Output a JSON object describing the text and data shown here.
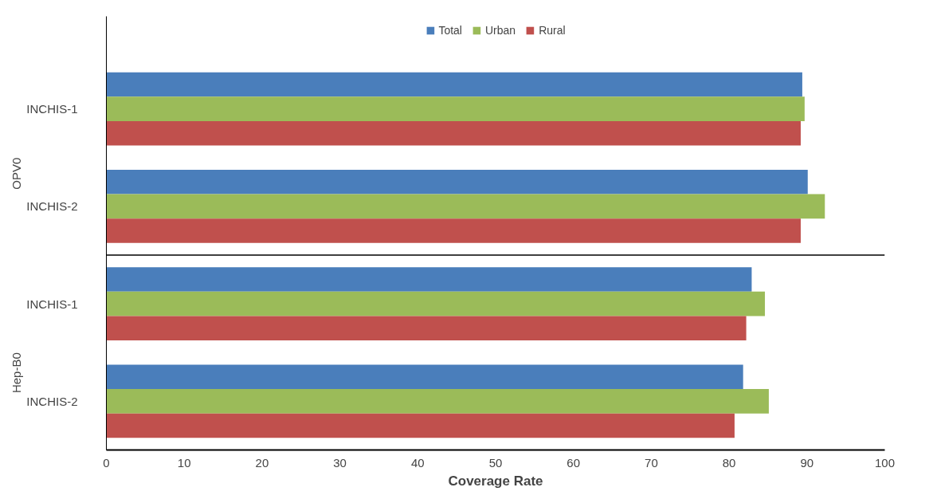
{
  "chart_data": {
    "type": "bar",
    "orientation": "horizontal",
    "xlabel": "Coverage Rate",
    "categories": [
      "INCHIS-1",
      "INCHIS-2",
      "INCHIS-1",
      "INCHIS-2"
    ],
    "annotations": [
      "OPV0",
      "Hep-B0"
    ],
    "series": [
      {
        "name": "Total",
        "color": "#4a7ebb",
        "values": [
          89.4,
          90.1,
          82.9,
          81.8
        ]
      },
      {
        "name": "Urban",
        "color": "#9bbb59",
        "values": [
          89.7,
          92.3,
          84.6,
          85.1
        ]
      },
      {
        "name": "Rural",
        "color": "#c0504d",
        "values": [
          89.2,
          89.2,
          82.2,
          80.7
        ]
      }
    ],
    "xlim": [
      0,
      100
    ],
    "xticks": [
      0,
      10,
      20,
      30,
      40,
      50,
      60,
      70,
      80,
      90,
      100
    ],
    "grid": false,
    "legend": "top"
  }
}
